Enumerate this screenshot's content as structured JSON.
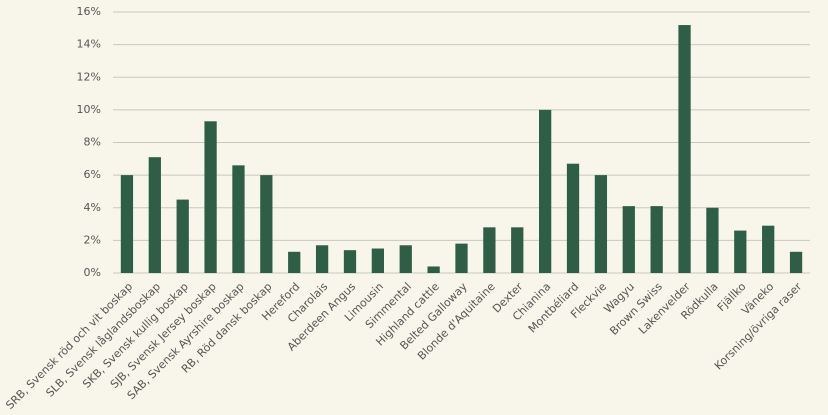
{
  "chart_data": {
    "type": "bar",
    "categories": [
      "SRB, Svensk röd och vit boskap",
      "SLB, Svensk låglandsboskap",
      "SKB, Svensk kullig boskap",
      "SJB, Svensk Jersey boskap",
      "SAB, Svensk Ayrshire boskap",
      "RB, Röd dansk boskap",
      "Hereford",
      "Charolais",
      "Aberdeen Angus",
      "Limousin",
      "Simmental",
      "Highland cattle",
      "Belted Galloway",
      "Blonde d'Aquitaine",
      "Dexter",
      "Chianina",
      "Montbéliard",
      "Fleckvie",
      "Wagyu",
      "Brown Swiss",
      "Lakenvelder",
      "Rödkulla",
      "Fjällko",
      "Väneko",
      "Korsning/övriga raser"
    ],
    "values": [
      6.0,
      7.1,
      4.5,
      9.3,
      6.6,
      6.0,
      1.3,
      1.7,
      1.4,
      1.5,
      1.7,
      0.4,
      1.8,
      2.8,
      2.8,
      10.0,
      6.7,
      6.0,
      4.1,
      4.1,
      15.2,
      4.0,
      2.6,
      2.9,
      1.3
    ],
    "color": "#2e5e46",
    "ylim": [
      0,
      16
    ],
    "yticks": [
      {
        "value": 0,
        "label": "0%"
      },
      {
        "value": 2,
        "label": "2%"
      },
      {
        "value": 4,
        "label": "4%"
      },
      {
        "value": 6,
        "label": "6%"
      },
      {
        "value": 8,
        "label": "8%"
      },
      {
        "value": 10,
        "label": "10%"
      },
      {
        "value": 12,
        "label": "12%"
      },
      {
        "value": 14,
        "label": "14%"
      },
      {
        "value": 16,
        "label": "16%"
      }
    ],
    "grid": true
  }
}
